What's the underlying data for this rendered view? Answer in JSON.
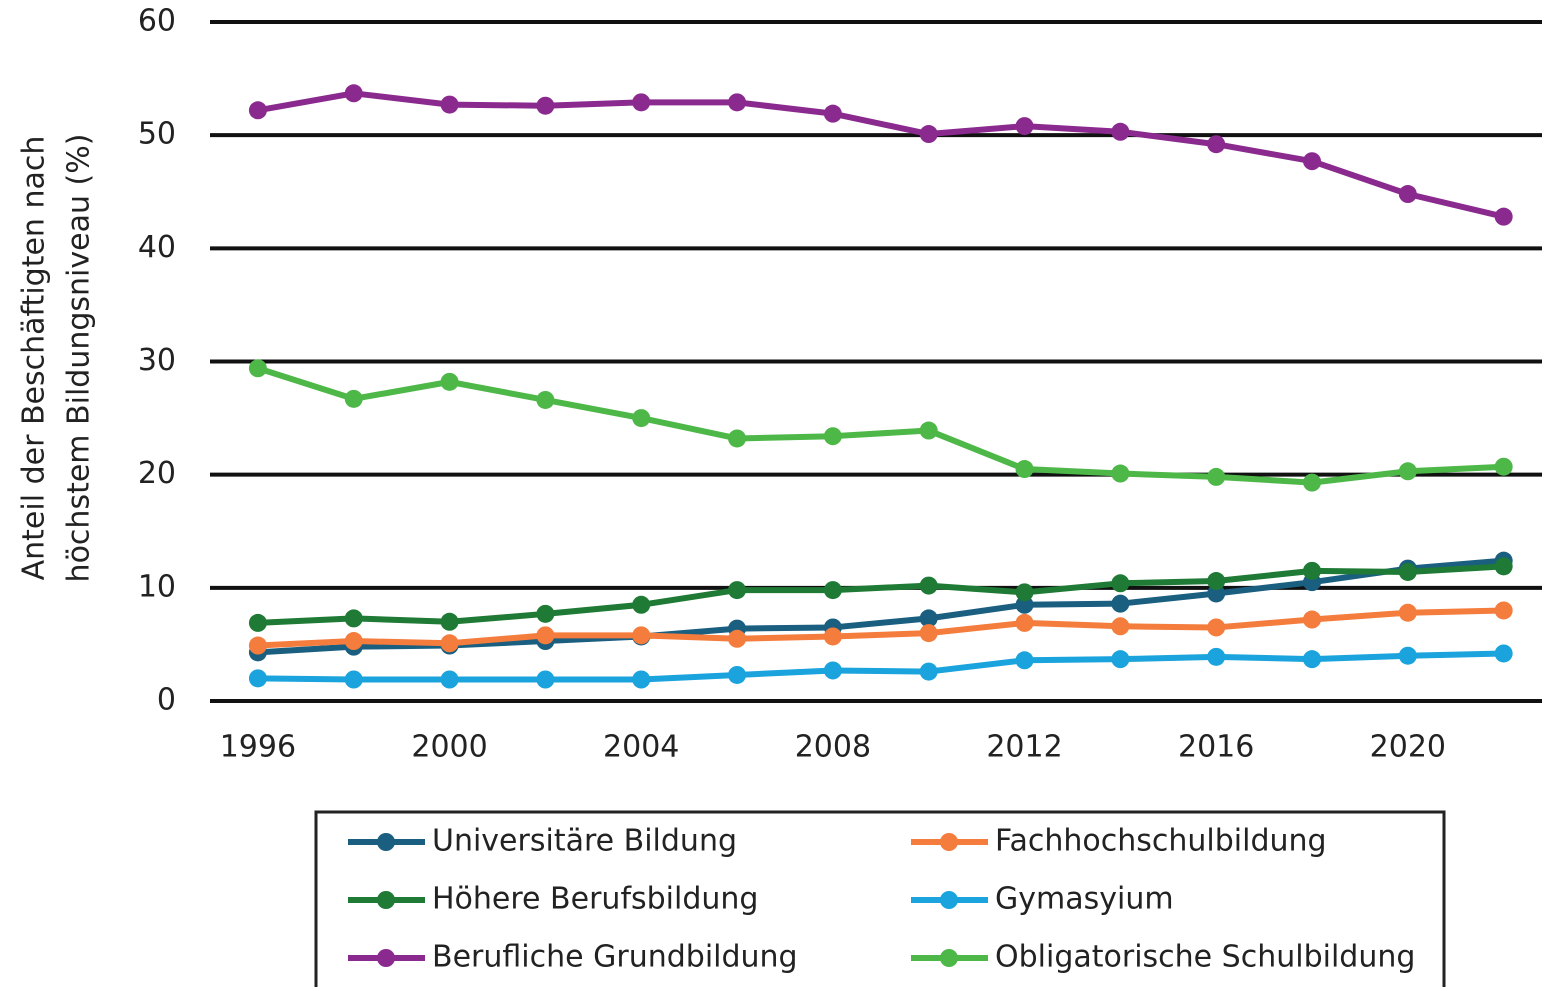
{
  "chart_data": {
    "type": "line",
    "ylabel": [
      "Anteil der Beschäftigten nach",
      "höchstem Bildungsniveau (%)"
    ],
    "x": [
      1996,
      1998,
      2000,
      2002,
      2004,
      2006,
      2008,
      2010,
      2012,
      2014,
      2016,
      2018,
      2020,
      2022
    ],
    "xlim": [
      1995,
      2022.8
    ],
    "xticks": [
      1996,
      2000,
      2004,
      2008,
      2012,
      2016,
      2020
    ],
    "ylim": [
      0,
      60
    ],
    "yticks": [
      0,
      10,
      20,
      30,
      40,
      50,
      60
    ],
    "grid": true,
    "legend": "bottom",
    "series": [
      {
        "name": "Universitäre Bildung",
        "color": "#1a5e80",
        "values": [
          4.3,
          4.8,
          4.9,
          5.3,
          5.7,
          6.4,
          6.5,
          7.3,
          8.5,
          8.6,
          9.5,
          10.5,
          11.7,
          12.4
        ]
      },
      {
        "name": "Fachhochschulbildung",
        "color": "#f47c3c",
        "values": [
          4.9,
          5.3,
          5.1,
          5.8,
          5.8,
          5.5,
          5.7,
          6.0,
          6.9,
          6.6,
          6.5,
          7.2,
          7.8,
          8.0
        ]
      },
      {
        "name": "Höhere Berufsbildung",
        "color": "#1e7a34",
        "values": [
          6.9,
          7.3,
          7.0,
          7.7,
          8.5,
          9.8,
          9.8,
          10.2,
          9.6,
          10.4,
          10.6,
          11.5,
          11.4,
          11.9
        ]
      },
      {
        "name": "Gymasyium",
        "color": "#1aa3dc",
        "values": [
          2.0,
          1.9,
          1.9,
          1.9,
          1.9,
          2.3,
          2.7,
          2.6,
          3.6,
          3.7,
          3.9,
          3.7,
          4.0,
          4.2
        ]
      },
      {
        "name": "Berufliche Grundbildung",
        "color": "#8b2a8e",
        "values": [
          52.2,
          53.7,
          52.7,
          52.6,
          52.9,
          52.9,
          51.9,
          50.1,
          50.8,
          50.3,
          49.2,
          47.7,
          44.8,
          42.8
        ]
      },
      {
        "name": "Obligatorische Schulbildung",
        "color": "#4db848",
        "values": [
          29.4,
          26.7,
          28.2,
          26.6,
          25.0,
          23.2,
          23.4,
          23.9,
          20.5,
          20.1,
          19.8,
          19.3,
          20.3,
          20.7
        ]
      }
    ]
  }
}
